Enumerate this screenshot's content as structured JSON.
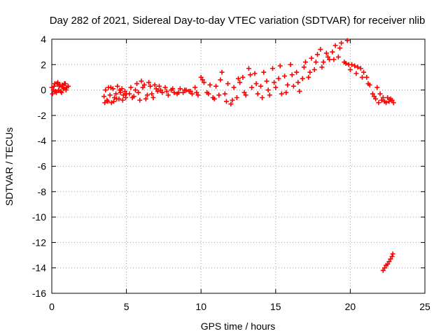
{
  "chart_data": {
    "type": "scatter",
    "title": "Day 282 of 2021, Sidereal Day-to-day VTEC variation (SDTVAR) for receiver nlib",
    "xlabel": "GPS time / hours",
    "ylabel": "SDTVAR / TECUs",
    "xlim": [
      0,
      25
    ],
    "ylim": [
      -16,
      4
    ],
    "xticks": [
      0,
      5,
      10,
      15,
      20,
      25
    ],
    "yticks": [
      4,
      2,
      0,
      -2,
      -4,
      -6,
      -8,
      -10,
      -12,
      -14,
      -16
    ],
    "xtick_labels": [
      "0",
      "5",
      "10",
      "15",
      "20",
      "25"
    ],
    "ytick_labels": [
      "4",
      "2",
      "0",
      "-2",
      "-4",
      "-6",
      "-8",
      "-10",
      "-12",
      "-14",
      "-16"
    ],
    "grid": true,
    "marker": "plus",
    "color": "#ff0000",
    "series": [
      {
        "name": "SDTVAR",
        "x": [
          0.0,
          0.1,
          0.2,
          0.3,
          0.4,
          0.5,
          0.6,
          0.7,
          0.8,
          0.9,
          1.0,
          1.1,
          0.05,
          0.15,
          0.25,
          0.35,
          0.45,
          0.55,
          0.65,
          0.75,
          0.85,
          0.95,
          3.5,
          3.6,
          3.7,
          3.8,
          3.9,
          4.0,
          4.1,
          4.2,
          4.3,
          4.4,
          4.5,
          4.6,
          4.7,
          4.8,
          4.9,
          5.0,
          3.55,
          3.75,
          3.95,
          4.15,
          4.35,
          4.55,
          4.75,
          4.95,
          5.2,
          5.4,
          5.6,
          5.8,
          6.0,
          6.2,
          6.4,
          6.6,
          6.8,
          7.0,
          5.3,
          5.5,
          5.7,
          5.9,
          6.1,
          6.3,
          6.5,
          6.7,
          6.9,
          7.1,
          7.2,
          7.4,
          7.6,
          7.8,
          8.0,
          8.2,
          8.4,
          8.6,
          8.8,
          9.0,
          9.2,
          9.4,
          9.6,
          9.8,
          7.3,
          7.7,
          8.1,
          8.5,
          8.9,
          9.3,
          9.7,
          10.0,
          10.2,
          10.4,
          10.6,
          10.8,
          11.0,
          11.2,
          11.4,
          11.6,
          11.8,
          10.1,
          10.5,
          10.9,
          11.3,
          11.7,
          12.0,
          12.2,
          12.4,
          12.6,
          12.8,
          13.0,
          13.2,
          13.4,
          13.6,
          13.8,
          12.1,
          12.5,
          12.9,
          13.3,
          13.7,
          14.0,
          14.2,
          14.4,
          14.6,
          14.8,
          15.0,
          15.2,
          15.4,
          15.6,
          15.8,
          14.1,
          14.5,
          14.9,
          15.3,
          15.7,
          16.0,
          16.2,
          16.4,
          16.6,
          16.8,
          17.0,
          17.2,
          17.4,
          17.6,
          17.8,
          16.1,
          16.5,
          16.9,
          17.3,
          17.7,
          18.0,
          18.2,
          18.4,
          18.6,
          18.8,
          19.0,
          19.2,
          19.4,
          19.6,
          19.8,
          18.1,
          18.5,
          18.9,
          19.3,
          19.7,
          19.9,
          20.1,
          20.3,
          20.5,
          20.7,
          20.9,
          21.1,
          21.3,
          21.5,
          21.7,
          20.0,
          20.4,
          20.8,
          21.2,
          21.6,
          21.9,
          22.1,
          22.3,
          22.5,
          22.7,
          22.9,
          21.8,
          22.0,
          22.2,
          22.4,
          22.6,
          22.8,
          22.2,
          22.3,
          22.4,
          22.5,
          22.6,
          22.7,
          22.8,
          22.85
        ],
        "y": [
          0.2,
          0.0,
          0.5,
          -0.2,
          0.6,
          0.3,
          -0.1,
          0.4,
          0.1,
          0.5,
          0.2,
          0.3,
          -0.3,
          0.3,
          -0.1,
          0.5,
          0.0,
          0.4,
          -0.2,
          0.2,
          0.5,
          0.0,
          -0.5,
          0.0,
          -0.8,
          0.2,
          -0.4,
          -1.0,
          0.1,
          -0.6,
          -0.3,
          0.3,
          -0.7,
          -0.2,
          0.1,
          -0.4,
          -0.1,
          -0.3,
          -1.0,
          -0.9,
          0.2,
          -0.9,
          -0.7,
          0.0,
          -0.8,
          -0.6,
          -0.3,
          -0.6,
          0.0,
          -0.2,
          0.7,
          0.4,
          -0.4,
          0.3,
          -0.6,
          0.1,
          0.2,
          -0.5,
          0.5,
          -0.8,
          0.2,
          -0.7,
          0.6,
          -0.3,
          0.4,
          -0.1,
          0.3,
          -0.2,
          0.2,
          -0.4,
          0.0,
          -0.2,
          -0.3,
          0.1,
          -0.2,
          0.0,
          -0.1,
          -0.3,
          0.2,
          -0.4,
          0.0,
          -0.1,
          0.1,
          -0.2,
          0.0,
          -0.1,
          -0.2,
          1.0,
          0.6,
          -0.2,
          0.4,
          -0.6,
          0.3,
          -0.4,
          1.4,
          -0.3,
          0.5,
          0.8,
          -0.3,
          -0.7,
          0.8,
          -0.9,
          -1.1,
          0.2,
          -0.6,
          0.6,
          1.0,
          -0.4,
          1.7,
          0.2,
          1.3,
          -0.3,
          -0.8,
          0.9,
          -0.2,
          1.2,
          0.5,
          0.3,
          1.4,
          0.7,
          -0.4,
          1.7,
          0.2,
          0.9,
          -0.3,
          1.1,
          0.4,
          -0.6,
          0.0,
          0.6,
          1.9,
          -0.2,
          2.0,
          0.3,
          1.4,
          -0.1,
          0.9,
          2.2,
          1.0,
          2.5,
          1.6,
          2.8,
          1.2,
          0.6,
          1.8,
          1.4,
          2.2,
          3.2,
          2.2,
          2.9,
          2.4,
          3.0,
          3.5,
          2.6,
          3.7,
          2.2,
          3.9,
          1.8,
          2.6,
          2.4,
          3.3,
          2.1,
          2.0,
          2.0,
          1.9,
          1.8,
          1.7,
          1.4,
          1.0,
          0.4,
          -0.3,
          -0.7,
          1.6,
          1.3,
          1.0,
          0.5,
          -0.5,
          -1.0,
          -0.8,
          -0.9,
          -0.6,
          -0.7,
          -1.0,
          0.2,
          -0.3,
          -0.6,
          -1.0,
          -0.9,
          -0.8,
          -14.2,
          -14.0,
          -13.8,
          -13.7,
          -13.5,
          -13.3,
          -13.1,
          -12.9
        ]
      }
    ]
  }
}
